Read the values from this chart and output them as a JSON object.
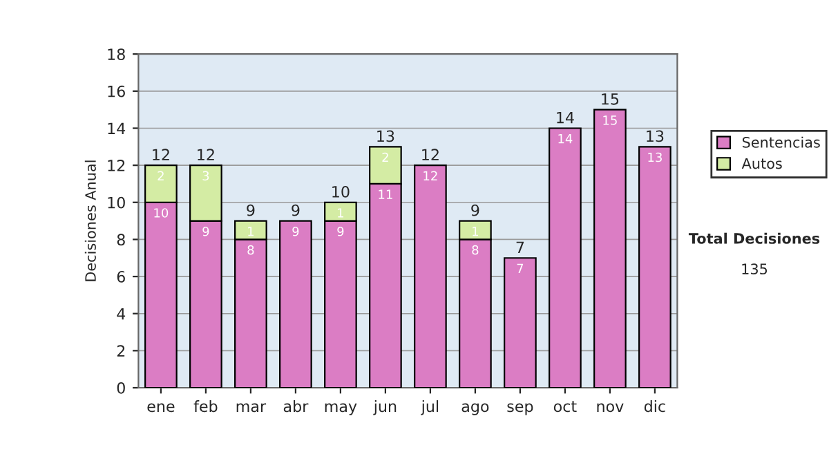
{
  "chart_data": {
    "type": "bar",
    "stacked": true,
    "ylabel": "Decisiones Anual",
    "categories": [
      "ene",
      "feb",
      "mar",
      "abr",
      "may",
      "jun",
      "jul",
      "ago",
      "sep",
      "oct",
      "nov",
      "dic"
    ],
    "series": [
      {
        "name": "Sentencias",
        "color": "#db7dc4",
        "values": [
          10,
          9,
          8,
          9,
          9,
          11,
          12,
          8,
          7,
          14,
          15,
          13
        ]
      },
      {
        "name": "Autos",
        "color": "#d4eca4",
        "values": [
          2,
          3,
          1,
          null,
          1,
          2,
          null,
          1,
          null,
          null,
          null,
          null
        ]
      }
    ],
    "totals": [
      "12",
      "12",
      "9",
      "9",
      "10",
      "13",
      "12",
      "9",
      "7",
      "14",
      "15",
      "13"
    ],
    "data_labels": true,
    "ylim": [
      0,
      18
    ],
    "yticks": [
      0,
      2,
      4,
      6,
      8,
      10,
      12,
      14,
      16,
      18
    ],
    "grid": "y",
    "legend": "right",
    "annotations": [
      "Total Decisiones",
      "135"
    ]
  }
}
